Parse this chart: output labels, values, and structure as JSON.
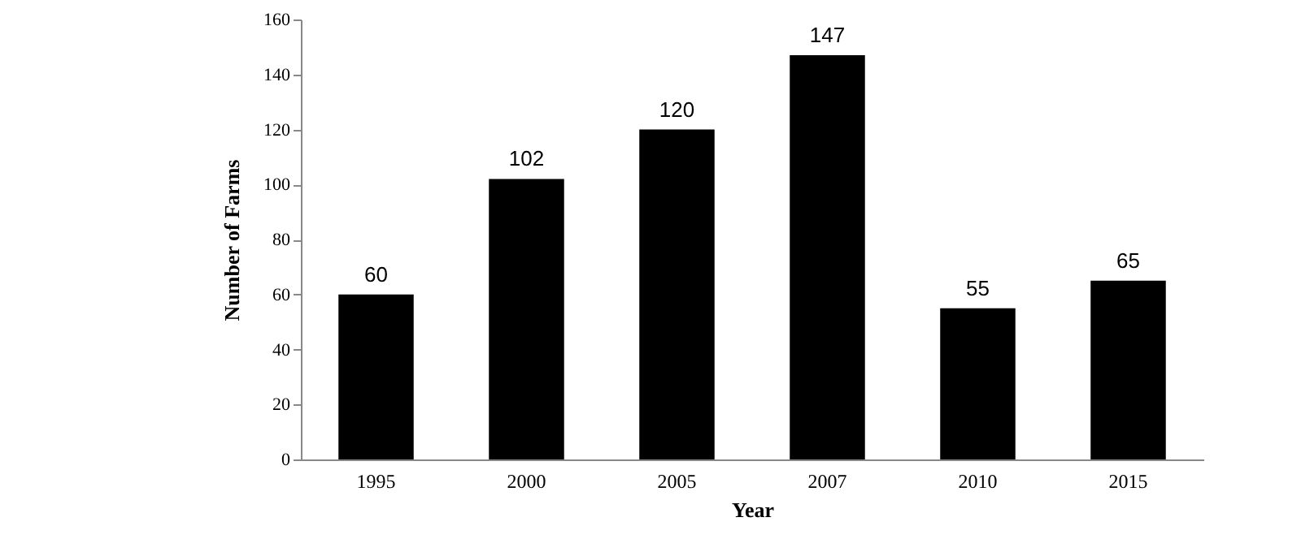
{
  "chart_data": {
    "type": "bar",
    "xlabel": "Year",
    "ylabel": "Number of Farms",
    "categories": [
      "1995",
      "2000",
      "2005",
      "2007",
      "2010",
      "2015"
    ],
    "values": [
      60,
      102,
      120,
      147,
      55,
      65
    ],
    "color": "#000000",
    "ylim": [
      0,
      160
    ],
    "yticks": [
      0,
      20,
      40,
      60,
      80,
      100,
      120,
      140,
      160
    ],
    "grid": false,
    "data_labels": true
  }
}
